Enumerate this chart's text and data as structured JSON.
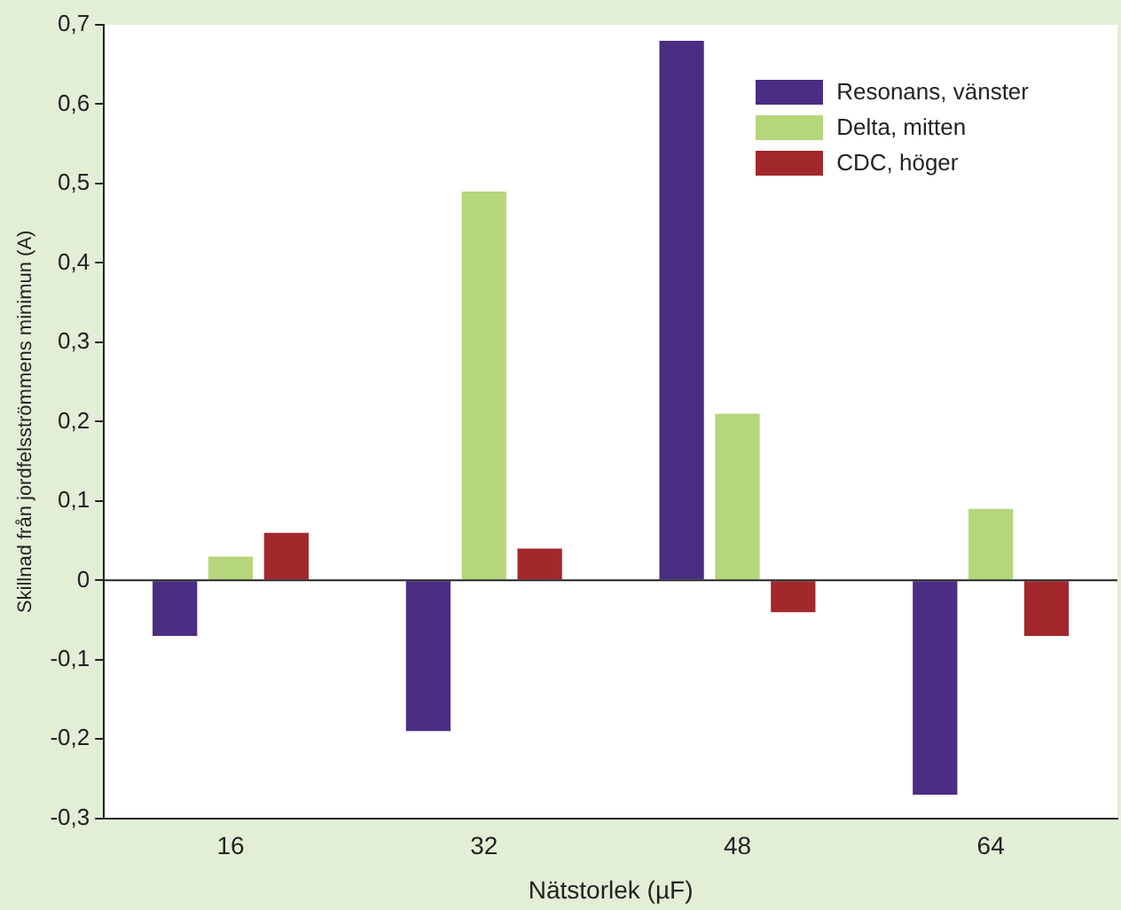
{
  "chart_data": {
    "type": "bar",
    "xlabel": "Nätstorlek (µF)",
    "ylabel": "Skillnad från jordfelsströmmens minimun (A)",
    "categories": [
      "16",
      "32",
      "48",
      "64"
    ],
    "series": [
      {
        "name": "Resonans, vänster",
        "color": "#4b2d83",
        "values": [
          -0.07,
          -0.19,
          0.68,
          -0.27
        ]
      },
      {
        "name": "Delta, mitten",
        "color": "#b5d67a",
        "values": [
          0.03,
          0.49,
          0.21,
          0.09
        ]
      },
      {
        "name": "CDC, höger",
        "color": "#a3282c",
        "values": [
          0.06,
          0.04,
          -0.04,
          -0.07
        ]
      }
    ],
    "ylim": [
      -0.3,
      0.7
    ],
    "yticks": [
      {
        "value": -0.3,
        "label": "-0,3"
      },
      {
        "value": -0.2,
        "label": "-0,2"
      },
      {
        "value": -0.1,
        "label": "-0,1"
      },
      {
        "value": 0,
        "label": "0"
      },
      {
        "value": 0.1,
        "label": "0,1"
      },
      {
        "value": 0.2,
        "label": "0,2"
      },
      {
        "value": 0.3,
        "label": "0,3"
      },
      {
        "value": 0.4,
        "label": "0,4"
      },
      {
        "value": 0.5,
        "label": "0,5"
      },
      {
        "value": 0.6,
        "label": "0,6"
      },
      {
        "value": 0.7,
        "label": "0,7"
      }
    ],
    "ref_lines": [
      {
        "axis": "y",
        "value": 0
      }
    ],
    "grid": false,
    "legend": "top right"
  }
}
